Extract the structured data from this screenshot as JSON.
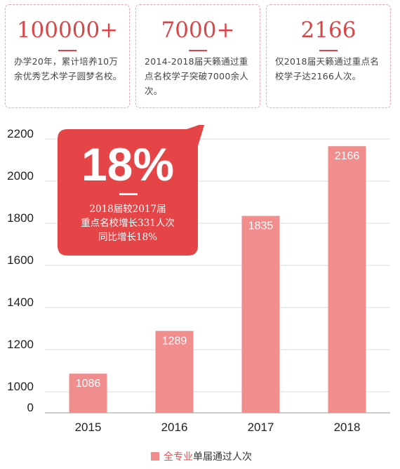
{
  "stats": [
    {
      "value": "100000+",
      "text": "办学20年，累计培养10万余优秀艺术学子圆梦名校。"
    },
    {
      "value": "7000+",
      "text": "2014-2018届天籁通过重点名校学子突破7000余人次。"
    },
    {
      "value": "2166",
      "text": "仅2018届天籁通过重点名校学子达2166人次。"
    }
  ],
  "callout": {
    "percent": "18%",
    "lines": [
      "2018届较2017届",
      "重点名校增长331人次",
      "同比增长18%"
    ]
  },
  "legend": {
    "highlight": "全专业",
    "rest": "单届通过人次"
  },
  "colors": {
    "bar": "#f28d8d",
    "callout": "#e64548",
    "accent": "#d9464a"
  },
  "chart_data": {
    "type": "bar",
    "title": "",
    "xlabel": "",
    "ylabel": "",
    "categories": [
      "2015",
      "2016",
      "2017",
      "2018"
    ],
    "series": [
      {
        "name": "全专业单届通过人次",
        "values": [
          1086,
          1289,
          1835,
          2166
        ]
      }
    ],
    "ylim": [
      0,
      2200
    ],
    "y_ticks": [
      0,
      1000,
      1200,
      1400,
      1600,
      1800,
      2000,
      2200
    ],
    "axis_break": "between 0 and 1000",
    "grid": true,
    "legend_position": "bottom-center",
    "data_labels": true
  }
}
